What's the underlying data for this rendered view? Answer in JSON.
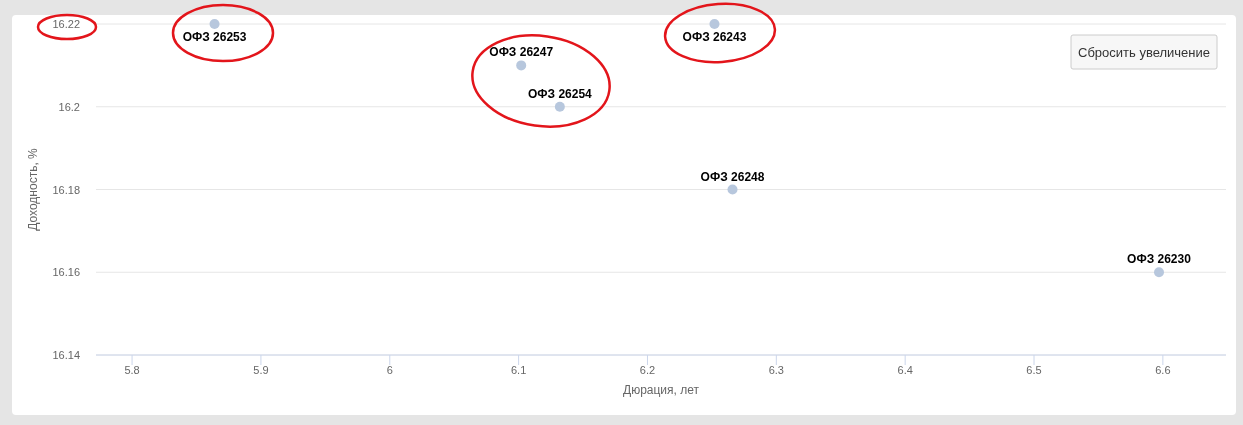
{
  "chart_data": {
    "type": "scatter",
    "xlabel": "Дюрация, лет",
    "ylabel": "Доходность, %",
    "xlim": [
      5.772,
      6.649
    ],
    "xticks": [
      5.8,
      5.9,
      6,
      6.1,
      6.2,
      6.3,
      6.4,
      6.5,
      6.6
    ],
    "ylim": [
      16.14,
      16.22
    ],
    "yticks": [
      16.14,
      16.16,
      16.18,
      16.2,
      16.22
    ],
    "grid": "y",
    "marker": "circle",
    "series": [
      {
        "name": "ОФЗ 26253",
        "color": "#b7c7dd",
        "x": [
          5.864
        ],
        "values": [
          16.22
        ]
      },
      {
        "name": "ОФЗ 26247",
        "color": "#b7c7dd",
        "x": [
          6.102
        ],
        "values": [
          16.21
        ]
      },
      {
        "name": "ОФЗ 26254",
        "color": "#b7c7dd",
        "x": [
          6.132
        ],
        "values": [
          16.2
        ]
      },
      {
        "name": "ОФЗ 26243",
        "color": "#b7c7dd",
        "x": [
          6.252
        ],
        "values": [
          16.22
        ]
      },
      {
        "name": "ОФЗ 26248",
        "color": "#b7c7dd",
        "x": [
          6.266
        ],
        "values": [
          16.18
        ]
      },
      {
        "name": "ОФЗ 26230",
        "color": "#b7c7dd",
        "x": [
          6.597
        ],
        "values": [
          16.16
        ]
      }
    ],
    "annotations": [
      "Сбросить увеличение"
    ]
  }
}
